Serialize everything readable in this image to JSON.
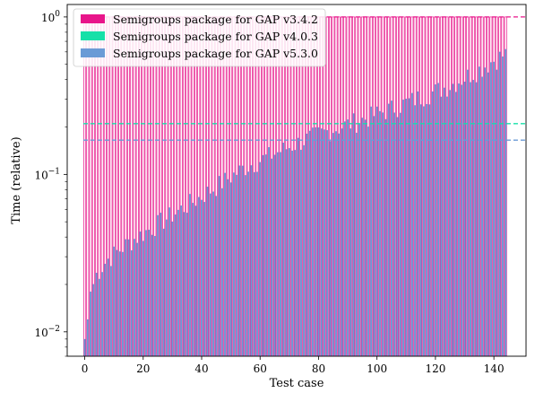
{
  "chart_data": {
    "type": "bar",
    "xlabel": "Test case",
    "ylabel": "Time (relative)",
    "yscale": "log",
    "ylim": [
      0.007,
      1.2
    ],
    "xlim": [
      -6,
      151
    ],
    "x_ticks": [
      0,
      20,
      40,
      60,
      80,
      100,
      120,
      140
    ],
    "y_ticks": [
      {
        "value": 1,
        "label": "10^0",
        "base": "10",
        "exp": "0"
      },
      {
        "value": 0.1,
        "label": "10^-1",
        "base": "10",
        "exp": "−1"
      },
      {
        "value": 0.01,
        "label": "10^-2",
        "base": "10",
        "exp": "−2"
      }
    ],
    "num_cases": 145,
    "legend_position": "upper-left",
    "series": [
      {
        "name": "Semigroups package for GAP v3.4.2",
        "color": "#e8158a",
        "style": "outline-bar",
        "value_all_cases": 1.0,
        "mean": 1.0
      },
      {
        "name": "Semigroups package for GAP v4.0.3",
        "color": "#16e0a8",
        "style": "filled-bar",
        "mean": 0.21
      },
      {
        "name": "Semigroups package for GAP v5.3.0",
        "color": "#6b9bd6",
        "style": "filled-bar",
        "mean": 0.165
      }
    ],
    "profile_v5": {
      "description": "sorted ascending relative times by test case",
      "x": [
        0,
        1,
        2,
        4,
        8,
        15,
        25,
        40,
        55,
        65,
        75,
        85,
        95,
        105,
        115,
        125,
        135,
        140,
        144
      ],
      "values": [
        0.009,
        0.012,
        0.018,
        0.024,
        0.03,
        0.038,
        0.05,
        0.075,
        0.115,
        0.14,
        0.17,
        0.2,
        0.23,
        0.27,
        0.32,
        0.38,
        0.48,
        0.55,
        0.6
      ]
    }
  }
}
